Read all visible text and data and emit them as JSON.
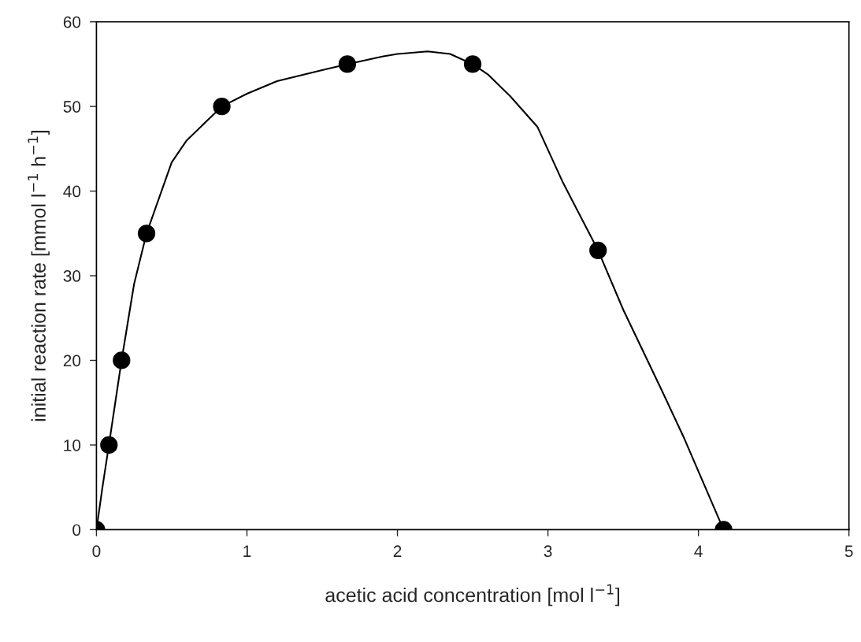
{
  "chart_data": {
    "type": "scatter",
    "xlabel": "acetic acid concentration [mol l$^{−1}$]",
    "ylabel": "initial reaction rate [mmol l$^{−1}$ h$^{−1}$]",
    "xlim": [
      0,
      5
    ],
    "xticks": [
      0,
      1,
      2,
      3,
      4,
      5
    ],
    "ylim": [
      0,
      60
    ],
    "yticks": [
      0,
      10,
      20,
      30,
      40,
      50,
      60
    ],
    "grid": false,
    "marker": "circle",
    "series": [
      {
        "color": "#000000",
        "x": [
          0,
          0.083,
          0.167,
          0.333,
          0.833,
          1.667,
          2.5,
          3.333,
          4.167
        ],
        "values": [
          0,
          10,
          20,
          35,
          50,
          55,
          55,
          33,
          0
        ]
      },
      {
        "type": "line",
        "color": "#000000",
        "marker": "none",
        "line_style": "solid",
        "x": [
          0,
          0.04,
          0.083,
          0.167,
          0.25,
          0.333,
          0.5,
          0.6,
          0.833,
          1.0,
          1.2,
          1.5,
          1.667,
          1.9,
          2.0,
          2.2,
          2.35,
          2.5,
          2.6,
          2.75,
          2.93,
          3.1,
          3.333,
          3.5,
          3.75,
          3.9,
          4.167
        ],
        "values": [
          0,
          5,
          10,
          20,
          29,
          35,
          43.4,
          46,
          50,
          51.5,
          53,
          54.3,
          55,
          55.9,
          56.2,
          56.5,
          56.2,
          55,
          53.8,
          51.2,
          47.6,
          41,
          33,
          26,
          16.7,
          11,
          0
        ]
      }
    ]
  }
}
